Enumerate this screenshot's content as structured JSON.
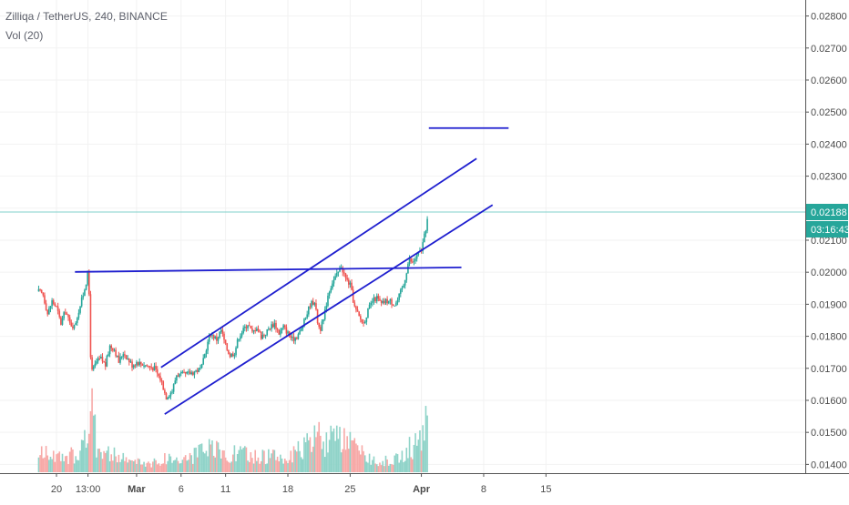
{
  "header": {
    "symbol_line": "Zilliqa / TetherUS, 240, BINANCE",
    "volume_line": "Vol (20)"
  },
  "colors": {
    "up": "#26a69a",
    "down": "#ef5350",
    "up_volume": "#8fd3c8",
    "down_volume": "#f7a9a7",
    "price_line": "#80d0cb",
    "badge": "#26a69a",
    "trendline": "#1f1fcf",
    "grid": "#f2f2f2",
    "axis": "#555555"
  },
  "chart_data": {
    "type": "candlestick",
    "title": "Zilliqa / TetherUS, 240, BINANCE",
    "interval": "240",
    "exchange": "BINANCE",
    "indicator": "Vol (20)",
    "x_ticks": [
      {
        "day": 20,
        "label": "20"
      },
      {
        "day": 23.54,
        "label": "13:00"
      },
      {
        "day": 29,
        "label": "Mar"
      },
      {
        "day": 34,
        "label": "6"
      },
      {
        "day": 39,
        "label": "11"
      },
      {
        "day": 46,
        "label": "18"
      },
      {
        "day": 53,
        "label": "25"
      },
      {
        "day": 61,
        "label": "Apr"
      },
      {
        "day": 68,
        "label": "8"
      },
      {
        "day": 75,
        "label": "15"
      }
    ],
    "y_ticks": [
      {
        "value": 0.014,
        "label": "0.01400"
      },
      {
        "value": 0.015,
        "label": "0.01500"
      },
      {
        "value": 0.016,
        "label": "0.01600"
      },
      {
        "value": 0.017,
        "label": "0.01700"
      },
      {
        "value": 0.018,
        "label": "0.01800"
      },
      {
        "value": 0.019,
        "label": "0.01900"
      },
      {
        "value": 0.02,
        "label": "0.02000"
      },
      {
        "value": 0.021,
        "label": "0.02100"
      },
      {
        "value": 0.022,
        "label": "0.02200"
      },
      {
        "value": 0.023,
        "label": "0.02300"
      },
      {
        "value": 0.024,
        "label": "0.02400"
      },
      {
        "value": 0.025,
        "label": "0.02500"
      },
      {
        "value": 0.026,
        "label": "0.02600"
      },
      {
        "value": 0.027,
        "label": "0.02700"
      },
      {
        "value": 0.028,
        "label": "0.02800"
      }
    ],
    "ylim": [
      0.0132,
      0.0284
    ],
    "last_price": {
      "value": 0.02188,
      "label": "0.02188"
    },
    "countdown": "03:16:43",
    "price_keypoints": [
      [
        18.0,
        0.0194
      ],
      [
        18.5,
        0.0193
      ],
      [
        19.0,
        0.0187
      ],
      [
        19.5,
        0.0191
      ],
      [
        20.0,
        0.0189
      ],
      [
        20.5,
        0.0184
      ],
      [
        21.0,
        0.0188
      ],
      [
        21.5,
        0.0184
      ],
      [
        22.0,
        0.0183
      ],
      [
        22.5,
        0.0188
      ],
      [
        23.0,
        0.0193
      ],
      [
        23.5,
        0.0199
      ],
      [
        23.7,
        0.0192
      ],
      [
        23.85,
        0.0172
      ],
      [
        24.0,
        0.0169
      ],
      [
        24.5,
        0.0172
      ],
      [
        25.0,
        0.0173
      ],
      [
        25.5,
        0.0171
      ],
      [
        26.0,
        0.0177
      ],
      [
        26.5,
        0.0176
      ],
      [
        27.0,
        0.0172
      ],
      [
        27.5,
        0.0175
      ],
      [
        28.0,
        0.0173
      ],
      [
        28.5,
        0.0171
      ],
      [
        29.0,
        0.0172
      ],
      [
        30.0,
        0.0171
      ],
      [
        31.0,
        0.017
      ],
      [
        31.8,
        0.0166
      ],
      [
        32.3,
        0.0161
      ],
      [
        33.0,
        0.0163
      ],
      [
        33.5,
        0.0168
      ],
      [
        34.5,
        0.0168
      ],
      [
        35.5,
        0.0169
      ],
      [
        36.3,
        0.017
      ],
      [
        36.8,
        0.0176
      ],
      [
        37.3,
        0.0181
      ],
      [
        38.0,
        0.0179
      ],
      [
        38.5,
        0.0182
      ],
      [
        39.0,
        0.0177
      ],
      [
        39.5,
        0.0174
      ],
      [
        40.0,
        0.0175
      ],
      [
        40.5,
        0.018
      ],
      [
        41.0,
        0.0182
      ],
      [
        41.5,
        0.0184
      ],
      [
        42.0,
        0.0181
      ],
      [
        42.5,
        0.0183
      ],
      [
        43.0,
        0.018
      ],
      [
        43.5,
        0.0181
      ],
      [
        44.0,
        0.0183
      ],
      [
        44.5,
        0.0184
      ],
      [
        45.0,
        0.0181
      ],
      [
        45.5,
        0.0183
      ],
      [
        46.0,
        0.0181
      ],
      [
        46.5,
        0.0179
      ],
      [
        47.0,
        0.018
      ],
      [
        47.5,
        0.0182
      ],
      [
        48.0,
        0.0186
      ],
      [
        48.5,
        0.019
      ],
      [
        49.0,
        0.0191
      ],
      [
        49.3,
        0.0185
      ],
      [
        49.6,
        0.0182
      ],
      [
        50.0,
        0.0185
      ],
      [
        50.5,
        0.0193
      ],
      [
        51.0,
        0.0197
      ],
      [
        51.5,
        0.0199
      ],
      [
        52.0,
        0.0202
      ],
      [
        52.5,
        0.0198
      ],
      [
        53.0,
        0.0196
      ],
      [
        53.5,
        0.0189
      ],
      [
        54.0,
        0.0186
      ],
      [
        54.5,
        0.0184
      ],
      [
        55.0,
        0.0188
      ],
      [
        55.5,
        0.0191
      ],
      [
        56.0,
        0.0192
      ],
      [
        56.5,
        0.019
      ],
      [
        57.0,
        0.0191
      ],
      [
        57.5,
        0.0191
      ],
      [
        58.0,
        0.019
      ],
      [
        58.3,
        0.0191
      ],
      [
        58.7,
        0.0194
      ],
      [
        59.0,
        0.0196
      ],
      [
        59.3,
        0.02
      ],
      [
        59.6,
        0.0204
      ],
      [
        60.0,
        0.0203
      ],
      [
        60.5,
        0.0205
      ],
      [
        61.0,
        0.0207
      ],
      [
        61.4,
        0.0212
      ],
      [
        61.8,
        0.02188
      ]
    ],
    "volume_keypoints": [
      [
        18.0,
        0.25
      ],
      [
        19.0,
        0.3
      ],
      [
        20.0,
        0.22
      ],
      [
        21.0,
        0.18
      ],
      [
        22.0,
        0.28
      ],
      [
        22.8,
        0.4
      ],
      [
        23.6,
        0.55
      ],
      [
        23.85,
        1.0
      ],
      [
        24.5,
        0.45
      ],
      [
        25.5,
        0.3
      ],
      [
        27.0,
        0.22
      ],
      [
        29.0,
        0.15
      ],
      [
        31.0,
        0.14
      ],
      [
        32.5,
        0.22
      ],
      [
        34.0,
        0.18
      ],
      [
        36.5,
        0.3
      ],
      [
        37.5,
        0.35
      ],
      [
        39.0,
        0.25
      ],
      [
        40.5,
        0.3
      ],
      [
        42.0,
        0.22
      ],
      [
        44.0,
        0.25
      ],
      [
        46.0,
        0.2
      ],
      [
        48.0,
        0.38
      ],
      [
        49.3,
        0.55
      ],
      [
        50.5,
        0.45
      ],
      [
        51.5,
        0.5
      ],
      [
        52.5,
        0.42
      ],
      [
        53.5,
        0.38
      ],
      [
        54.5,
        0.25
      ],
      [
        56.0,
        0.18
      ],
      [
        57.5,
        0.16
      ],
      [
        58.5,
        0.22
      ],
      [
        59.5,
        0.35
      ],
      [
        60.5,
        0.4
      ],
      [
        61.2,
        0.6
      ],
      [
        61.6,
        1.0
      ],
      [
        61.8,
        0.5
      ]
    ],
    "volume_max_ratio": 1.0,
    "annotations": [
      {
        "type": "trendline",
        "from": {
          "day": 22.08,
          "price": 0.02001
        },
        "to": {
          "day": 65.5,
          "price": 0.02015
        }
      },
      {
        "type": "trendline",
        "from": {
          "day": 31.75,
          "price": 0.01703
        },
        "to": {
          "day": 67.2,
          "price": 0.02355
        }
      },
      {
        "type": "trendline",
        "from": {
          "day": 32.16,
          "price": 0.01557
        },
        "to": {
          "day": 69.0,
          "price": 0.0221
        }
      },
      {
        "type": "trendline",
        "from": {
          "day": 61.84,
          "price": 0.0245
        },
        "to": {
          "day": 70.8,
          "price": 0.0245
        }
      }
    ]
  }
}
